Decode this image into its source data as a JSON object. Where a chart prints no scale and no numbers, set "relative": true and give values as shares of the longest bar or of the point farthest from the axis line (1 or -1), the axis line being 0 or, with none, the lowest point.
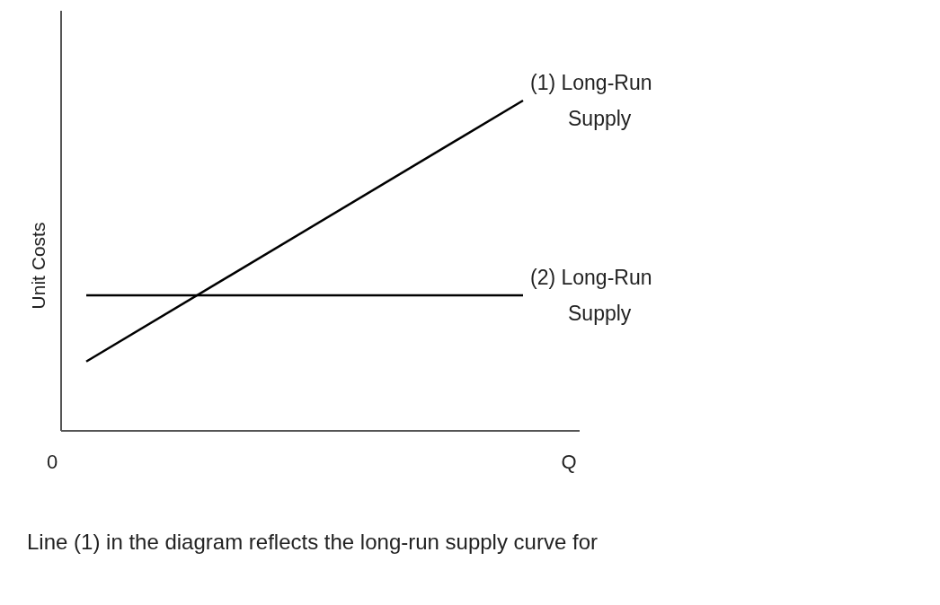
{
  "chart_data": {
    "type": "line",
    "relative": true,
    "ylabel": "Unit Costs",
    "xlabel": "Q",
    "categories": [
      null,
      null
    ],
    "series": [
      {
        "name": "(1) Long-Run Supply",
        "color": "#000000",
        "values": [
          0.21,
          1
        ]
      },
      {
        "name": "(2) Long-Run Supply",
        "color": "#000000",
        "values": [
          0.41,
          0.41
        ]
      }
    ],
    "marker": "none",
    "line_style": "solid",
    "grid": false,
    "annotations": [
      "0",
      "Line (1) in the diagram reflects the long-run supply curve for"
    ]
  }
}
